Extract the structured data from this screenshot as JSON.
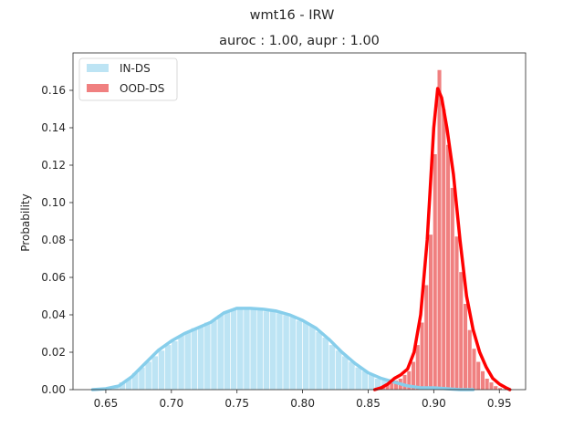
{
  "chart_data": {
    "type": "bar",
    "title": "wmt16 - IRW",
    "subtitle": "auroc : 1.00, aupr : 1.00",
    "xlabel": "",
    "ylabel": "Probability",
    "xlim": [
      0.625,
      0.97
    ],
    "ylim": [
      0,
      0.18
    ],
    "xticks": [
      0.65,
      0.7,
      0.75,
      0.8,
      0.85,
      0.9,
      0.95
    ],
    "xtick_labels": [
      "0.65",
      "0.70",
      "0.75",
      "0.80",
      "0.85",
      "0.90",
      "0.95"
    ],
    "yticks": [
      0.0,
      0.02,
      0.04,
      0.06,
      0.08,
      0.1,
      0.12,
      0.14,
      0.16
    ],
    "ytick_labels": [
      "0.00",
      "0.02",
      "0.04",
      "0.06",
      "0.08",
      "0.10",
      "0.12",
      "0.14",
      "0.16"
    ],
    "grid": false,
    "legend_position": "top-left",
    "series": [
      {
        "name": "IN-DS",
        "color": "#87ceeb",
        "bin_width": 0.005,
        "bins": [
          [
            0.6425,
            0.0
          ],
          [
            0.6475,
            0.0
          ],
          [
            0.6525,
            0.001
          ],
          [
            0.6575,
            0.002
          ],
          [
            0.6625,
            0.004
          ],
          [
            0.6675,
            0.006
          ],
          [
            0.6725,
            0.009
          ],
          [
            0.6775,
            0.012
          ],
          [
            0.6825,
            0.015
          ],
          [
            0.6875,
            0.018
          ],
          [
            0.6925,
            0.021
          ],
          [
            0.6975,
            0.024
          ],
          [
            0.7025,
            0.026
          ],
          [
            0.7075,
            0.029
          ],
          [
            0.7125,
            0.031
          ],
          [
            0.7175,
            0.033
          ],
          [
            0.7225,
            0.034
          ],
          [
            0.7275,
            0.036
          ],
          [
            0.7325,
            0.037
          ],
          [
            0.7375,
            0.04
          ],
          [
            0.7425,
            0.042
          ],
          [
            0.7475,
            0.043
          ],
          [
            0.7525,
            0.043
          ],
          [
            0.7575,
            0.044
          ],
          [
            0.7625,
            0.043
          ],
          [
            0.7675,
            0.043
          ],
          [
            0.7725,
            0.042
          ],
          [
            0.7775,
            0.042
          ],
          [
            0.7825,
            0.041
          ],
          [
            0.7875,
            0.04
          ],
          [
            0.7925,
            0.039
          ],
          [
            0.7975,
            0.037
          ],
          [
            0.8025,
            0.036
          ],
          [
            0.8075,
            0.034
          ],
          [
            0.8125,
            0.031
          ],
          [
            0.8175,
            0.028
          ],
          [
            0.8225,
            0.024
          ],
          [
            0.8275,
            0.021
          ],
          [
            0.8325,
            0.018
          ],
          [
            0.8375,
            0.015
          ],
          [
            0.8425,
            0.012
          ],
          [
            0.8475,
            0.01
          ],
          [
            0.8525,
            0.008
          ],
          [
            0.8575,
            0.006
          ],
          [
            0.8625,
            0.005
          ],
          [
            0.8675,
            0.004
          ],
          [
            0.8725,
            0.003
          ],
          [
            0.8775,
            0.003
          ],
          [
            0.8825,
            0.002
          ],
          [
            0.8875,
            0.002
          ],
          [
            0.8925,
            0.001
          ],
          [
            0.8975,
            0.001
          ],
          [
            0.9025,
            0.001
          ],
          [
            0.9075,
            0.001
          ],
          [
            0.9125,
            0.001
          ],
          [
            0.9175,
            0.0
          ],
          [
            0.9225,
            0.0
          ],
          [
            0.9275,
            0.0
          ],
          [
            0.9325,
            0.0
          ],
          [
            0.9375,
            0.0
          ]
        ],
        "kde": [
          [
            0.64,
            0.0
          ],
          [
            0.65,
            0.0005
          ],
          [
            0.66,
            0.002
          ],
          [
            0.67,
            0.007
          ],
          [
            0.68,
            0.014
          ],
          [
            0.69,
            0.021
          ],
          [
            0.7,
            0.026
          ],
          [
            0.71,
            0.03
          ],
          [
            0.72,
            0.033
          ],
          [
            0.73,
            0.036
          ],
          [
            0.74,
            0.041
          ],
          [
            0.75,
            0.0435
          ],
          [
            0.76,
            0.0435
          ],
          [
            0.77,
            0.043
          ],
          [
            0.78,
            0.042
          ],
          [
            0.79,
            0.04
          ],
          [
            0.8,
            0.037
          ],
          [
            0.81,
            0.033
          ],
          [
            0.82,
            0.027
          ],
          [
            0.83,
            0.02
          ],
          [
            0.84,
            0.014
          ],
          [
            0.85,
            0.009
          ],
          [
            0.86,
            0.006
          ],
          [
            0.87,
            0.004
          ],
          [
            0.88,
            0.002
          ],
          [
            0.89,
            0.001
          ],
          [
            0.9,
            0.001
          ],
          [
            0.91,
            0.0005
          ],
          [
            0.92,
            0.0
          ],
          [
            0.93,
            0.0
          ]
        ]
      },
      {
        "name": "OOD-DS",
        "color": "#ff0000",
        "bar_color": "#f08080",
        "bin_width": 0.0033,
        "bins": [
          [
            0.8581,
            0.001
          ],
          [
            0.8614,
            0.002
          ],
          [
            0.8647,
            0.003
          ],
          [
            0.868,
            0.004
          ],
          [
            0.8713,
            0.005
          ],
          [
            0.8746,
            0.006
          ],
          [
            0.8779,
            0.008
          ],
          [
            0.8812,
            0.01
          ],
          [
            0.8845,
            0.015
          ],
          [
            0.8878,
            0.024
          ],
          [
            0.8911,
            0.036
          ],
          [
            0.8944,
            0.056
          ],
          [
            0.8977,
            0.083
          ],
          [
            0.901,
            0.126
          ],
          [
            0.9043,
            0.171
          ],
          [
            0.9076,
            0.15
          ],
          [
            0.9109,
            0.131
          ],
          [
            0.9142,
            0.108
          ],
          [
            0.9175,
            0.082
          ],
          [
            0.9208,
            0.063
          ],
          [
            0.9241,
            0.046
          ],
          [
            0.9274,
            0.032
          ],
          [
            0.9307,
            0.022
          ],
          [
            0.934,
            0.015
          ],
          [
            0.9373,
            0.01
          ],
          [
            0.9406,
            0.006
          ],
          [
            0.9439,
            0.004
          ],
          [
            0.9472,
            0.002
          ],
          [
            0.9505,
            0.001
          ]
        ],
        "kde": [
          [
            0.855,
            0.0
          ],
          [
            0.86,
            0.001
          ],
          [
            0.865,
            0.003
          ],
          [
            0.87,
            0.006
          ],
          [
            0.875,
            0.008
          ],
          [
            0.88,
            0.011
          ],
          [
            0.885,
            0.02
          ],
          [
            0.89,
            0.04
          ],
          [
            0.895,
            0.08
          ],
          [
            0.9,
            0.14
          ],
          [
            0.903,
            0.161
          ],
          [
            0.906,
            0.156
          ],
          [
            0.91,
            0.14
          ],
          [
            0.915,
            0.115
          ],
          [
            0.92,
            0.08
          ],
          [
            0.925,
            0.05
          ],
          [
            0.93,
            0.032
          ],
          [
            0.935,
            0.02
          ],
          [
            0.94,
            0.012
          ],
          [
            0.945,
            0.006
          ],
          [
            0.95,
            0.003
          ],
          [
            0.955,
            0.001
          ],
          [
            0.958,
            0.0
          ]
        ]
      }
    ]
  }
}
